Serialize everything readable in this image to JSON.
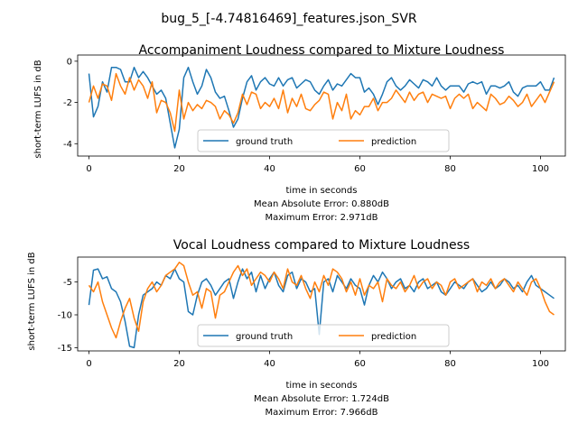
{
  "suptitle": "bug_5_[-4.74816469]_features.json_SVR",
  "colors": {
    "ground_truth": "#1f77b4",
    "prediction": "#ff7f0e"
  },
  "chart_data": [
    {
      "type": "line",
      "title": "Accompaniment Loudness compared to Mixture Loudness",
      "xlabel": "time in seconds",
      "ylabel": "short-term LUFS in dB",
      "xlim": [
        -2.5,
        105.5
      ],
      "ylim": [
        -4.6,
        0.3
      ],
      "xticks": [
        0,
        20,
        40,
        60,
        80,
        100
      ],
      "yticks": [
        0,
        -2,
        -4
      ],
      "legend": {
        "placement": "lower center",
        "columns": 2
      },
      "notes": [
        "Mean Absolute Error: 0.880dB",
        "Maximum Error: 2.971dB"
      ],
      "series": [
        {
          "name": "ground truth",
          "color": "#1f77b4",
          "x": [
            0,
            1,
            2,
            3,
            4,
            5,
            6,
            7,
            8,
            9,
            10,
            11,
            12,
            13,
            14,
            15,
            16,
            17,
            18,
            19,
            20,
            21,
            22,
            23,
            24,
            25,
            26,
            27,
            28,
            29,
            30,
            31,
            32,
            33,
            34,
            35,
            36,
            37,
            38,
            39,
            40,
            41,
            42,
            43,
            44,
            45,
            46,
            47,
            48,
            49,
            50,
            51,
            52,
            53,
            54,
            55,
            56,
            57,
            58,
            59,
            60,
            61,
            62,
            63,
            64,
            65,
            66,
            67,
            68,
            69,
            70,
            71,
            72,
            73,
            74,
            75,
            76,
            77,
            78,
            79,
            80,
            81,
            82,
            83,
            84,
            85,
            86,
            87,
            88,
            89,
            90,
            91,
            92,
            93,
            94,
            95,
            96,
            97,
            98,
            99,
            100,
            101,
            102,
            103
          ],
          "y": [
            -0.6,
            -2.7,
            -2.2,
            -1.0,
            -1.5,
            -0.3,
            -0.3,
            -0.4,
            -1.0,
            -1.0,
            -0.3,
            -0.8,
            -0.5,
            -0.8,
            -1.2,
            -1.6,
            -1.4,
            -1.8,
            -3.0,
            -4.2,
            -3.3,
            -0.8,
            -0.3,
            -1.0,
            -1.6,
            -1.2,
            -0.4,
            -0.8,
            -1.5,
            -1.8,
            -1.7,
            -2.4,
            -3.2,
            -2.8,
            -1.8,
            -1.0,
            -0.7,
            -1.4,
            -1.0,
            -0.8,
            -1.1,
            -1.2,
            -0.8,
            -1.2,
            -0.9,
            -0.8,
            -1.3,
            -1.1,
            -0.9,
            -1.0,
            -1.4,
            -1.6,
            -1.2,
            -0.9,
            -1.4,
            -1.1,
            -1.2,
            -0.9,
            -0.6,
            -0.8,
            -0.8,
            -1.5,
            -1.3,
            -1.6,
            -2.1,
            -1.6,
            -1.0,
            -0.8,
            -1.2,
            -1.4,
            -1.2,
            -0.9,
            -1.1,
            -1.3,
            -0.9,
            -1.0,
            -1.2,
            -0.8,
            -1.2,
            -1.4,
            -1.2,
            -1.2,
            -1.2,
            -1.5,
            -1.1,
            -1.0,
            -1.1,
            -1.0,
            -1.6,
            -1.2,
            -1.2,
            -1.3,
            -1.2,
            -1.0,
            -1.5,
            -1.7,
            -1.3,
            -1.2,
            -1.2,
            -1.2,
            -1.0,
            -1.4,
            -1.4,
            -0.8
          ]
        },
        {
          "name": "prediction",
          "color": "#ff7f0e",
          "x": [
            0,
            1,
            2,
            3,
            4,
            5,
            6,
            7,
            8,
            9,
            10,
            11,
            12,
            13,
            14,
            15,
            16,
            17,
            18,
            19,
            20,
            21,
            22,
            23,
            24,
            25,
            26,
            27,
            28,
            29,
            30,
            31,
            32,
            33,
            34,
            35,
            36,
            37,
            38,
            39,
            40,
            41,
            42,
            43,
            44,
            45,
            46,
            47,
            48,
            49,
            50,
            51,
            52,
            53,
            54,
            55,
            56,
            57,
            58,
            59,
            60,
            61,
            62,
            63,
            64,
            65,
            66,
            67,
            68,
            69,
            70,
            71,
            72,
            73,
            74,
            75,
            76,
            77,
            78,
            79,
            80,
            81,
            82,
            83,
            84,
            85,
            86,
            87,
            88,
            89,
            90,
            91,
            92,
            93,
            94,
            95,
            96,
            97,
            98,
            99,
            100,
            101,
            102,
            103
          ],
          "y": [
            -2.0,
            -1.2,
            -1.8,
            -1.1,
            -1.2,
            -1.9,
            -0.6,
            -1.2,
            -1.6,
            -0.8,
            -1.4,
            -0.9,
            -1.2,
            -1.8,
            -1.0,
            -2.5,
            -1.9,
            -2.0,
            -2.5,
            -3.4,
            -1.4,
            -2.8,
            -2.0,
            -2.4,
            -2.1,
            -2.3,
            -1.9,
            -2.0,
            -2.2,
            -2.8,
            -2.4,
            -2.6,
            -3.0,
            -2.5,
            -1.6,
            -2.1,
            -1.5,
            -1.6,
            -2.3,
            -2.0,
            -2.2,
            -1.8,
            -2.3,
            -1.4,
            -2.5,
            -1.8,
            -2.2,
            -1.6,
            -2.3,
            -2.4,
            -2.1,
            -1.9,
            -1.5,
            -1.6,
            -2.8,
            -2.0,
            -2.4,
            -1.6,
            -2.8,
            -2.4,
            -2.6,
            -2.2,
            -2.2,
            -1.8,
            -2.4,
            -2.0,
            -2.0,
            -1.8,
            -1.4,
            -1.7,
            -2.0,
            -1.5,
            -1.9,
            -1.6,
            -1.5,
            -2.0,
            -1.6,
            -1.7,
            -1.8,
            -1.7,
            -2.3,
            -1.8,
            -1.6,
            -1.8,
            -1.6,
            -2.3,
            -2.0,
            -2.2,
            -2.4,
            -1.6,
            -1.8,
            -2.1,
            -2.0,
            -1.7,
            -1.9,
            -2.2,
            -2.0,
            -1.6,
            -2.2,
            -1.9,
            -1.6,
            -2.0,
            -1.5,
            -1.0
          ]
        }
      ]
    },
    {
      "type": "line",
      "title": "Vocal Loudness compared to Mixture Loudness",
      "xlabel": "time in seconds",
      "ylabel": "short-term LUFS in dB",
      "xlim": [
        -2.5,
        105.5
      ],
      "ylim": [
        -15.5,
        -1.2
      ],
      "xticks": [
        0,
        20,
        40,
        60,
        80,
        100
      ],
      "yticks": [
        -5,
        -10,
        -15
      ],
      "legend": {
        "placement": "lower center",
        "columns": 2
      },
      "notes": [
        "Mean Absolute Error: 1.724dB",
        "Maximum Error: 7.966dB"
      ],
      "series": [
        {
          "name": "ground truth",
          "color": "#1f77b4",
          "x": [
            0,
            1,
            2,
            3,
            4,
            5,
            6,
            7,
            8,
            9,
            10,
            11,
            12,
            13,
            14,
            15,
            16,
            17,
            18,
            19,
            20,
            21,
            22,
            23,
            24,
            25,
            26,
            27,
            28,
            29,
            30,
            31,
            32,
            33,
            34,
            35,
            36,
            37,
            38,
            39,
            40,
            41,
            42,
            43,
            44,
            45,
            46,
            47,
            48,
            49,
            50,
            51,
            52,
            53,
            54,
            55,
            56,
            57,
            58,
            59,
            60,
            61,
            62,
            63,
            64,
            65,
            66,
            67,
            68,
            69,
            70,
            71,
            72,
            73,
            74,
            75,
            76,
            77,
            78,
            79,
            80,
            81,
            82,
            83,
            84,
            85,
            86,
            87,
            88,
            89,
            90,
            91,
            92,
            93,
            94,
            95,
            96,
            97,
            98,
            99,
            100,
            101,
            102,
            103
          ],
          "y": [
            -8.5,
            -3.2,
            -3.0,
            -4.5,
            -4.2,
            -6.0,
            -6.5,
            -8.0,
            -11.0,
            -14.8,
            -15.0,
            -10.0,
            -7.0,
            -6.5,
            -6.0,
            -5.0,
            -5.5,
            -4.0,
            -4.5,
            -3.0,
            -4.5,
            -5.0,
            -9.5,
            -10.0,
            -7.0,
            -5.0,
            -4.5,
            -5.5,
            -7.0,
            -6.0,
            -5.0,
            -4.5,
            -7.5,
            -5.0,
            -3.0,
            -4.5,
            -3.5,
            -6.5,
            -4.0,
            -6.0,
            -4.5,
            -3.5,
            -5.5,
            -6.5,
            -4.0,
            -3.5,
            -6.0,
            -4.5,
            -5.0,
            -6.5,
            -6.0,
            -13.0,
            -5.0,
            -4.5,
            -6.5,
            -4.0,
            -5.0,
            -6.0,
            -4.5,
            -5.5,
            -6.0,
            -8.5,
            -5.5,
            -4.0,
            -5.0,
            -3.5,
            -4.5,
            -6.0,
            -5.0,
            -4.5,
            -6.0,
            -5.5,
            -6.5,
            -5.0,
            -4.5,
            -6.0,
            -5.5,
            -5.0,
            -6.5,
            -7.0,
            -6.0,
            -5.0,
            -5.5,
            -6.0,
            -5.0,
            -4.5,
            -5.5,
            -6.5,
            -6.0,
            -5.0,
            -6.0,
            -5.5,
            -4.5,
            -5.0,
            -6.0,
            -5.5,
            -6.5,
            -5.0,
            -4.0,
            -5.5,
            -6.0,
            -6.5,
            -7.0,
            -7.5
          ]
        },
        {
          "name": "prediction",
          "color": "#ff7f0e",
          "x": [
            0,
            1,
            2,
            3,
            4,
            5,
            6,
            7,
            8,
            9,
            10,
            11,
            12,
            13,
            14,
            15,
            16,
            17,
            18,
            19,
            20,
            21,
            22,
            23,
            24,
            25,
            26,
            27,
            28,
            29,
            30,
            31,
            32,
            33,
            34,
            35,
            36,
            37,
            38,
            39,
            40,
            41,
            42,
            43,
            44,
            45,
            46,
            47,
            48,
            49,
            50,
            51,
            52,
            53,
            54,
            55,
            56,
            57,
            58,
            59,
            60,
            61,
            62,
            63,
            64,
            65,
            66,
            67,
            68,
            69,
            70,
            71,
            72,
            73,
            74,
            75,
            76,
            77,
            78,
            79,
            80,
            81,
            82,
            83,
            84,
            85,
            86,
            87,
            88,
            89,
            90,
            91,
            92,
            93,
            94,
            95,
            96,
            97,
            98,
            99,
            100,
            101,
            102,
            103
          ],
          "y": [
            -5.5,
            -6.5,
            -5.0,
            -8.0,
            -10.0,
            -12.0,
            -13.5,
            -11.0,
            -9.0,
            -7.5,
            -10.5,
            -12.5,
            -8.0,
            -6.0,
            -5.0,
            -6.5,
            -5.5,
            -4.0,
            -3.5,
            -3.0,
            -2.0,
            -2.5,
            -5.0,
            -7.0,
            -6.5,
            -9.0,
            -6.0,
            -6.5,
            -10.5,
            -7.0,
            -6.5,
            -5.0,
            -3.5,
            -2.5,
            -4.0,
            -3.0,
            -5.5,
            -4.5,
            -3.5,
            -4.0,
            -5.0,
            -3.5,
            -4.5,
            -6.0,
            -3.0,
            -5.0,
            -5.5,
            -4.0,
            -6.0,
            -7.5,
            -5.0,
            -6.5,
            -4.0,
            -5.5,
            -3.0,
            -3.5,
            -4.5,
            -6.5,
            -5.0,
            -7.0,
            -4.5,
            -7.0,
            -5.5,
            -6.0,
            -5.0,
            -8.0,
            -4.5,
            -5.5,
            -6.0,
            -5.0,
            -6.5,
            -5.5,
            -4.0,
            -6.0,
            -5.0,
            -4.5,
            -6.0,
            -5.0,
            -5.5,
            -7.0,
            -5.0,
            -4.5,
            -6.0,
            -5.5,
            -5.0,
            -4.5,
            -6.5,
            -5.0,
            -5.5,
            -4.5,
            -6.0,
            -5.0,
            -4.5,
            -5.5,
            -6.5,
            -5.0,
            -6.0,
            -7.0,
            -5.0,
            -4.5,
            -6.0,
            -8.0,
            -9.5,
            -10.0
          ]
        }
      ]
    }
  ]
}
